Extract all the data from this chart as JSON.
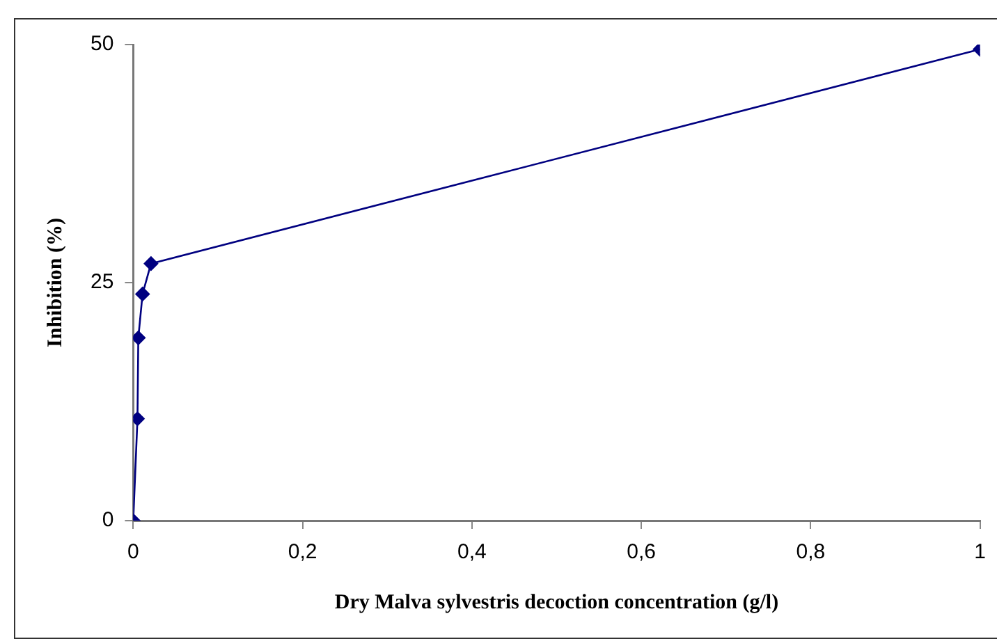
{
  "chart_data": {
    "type": "line",
    "xlabel": "Dry Malva sylvestris decoction concentration (g/l)",
    "ylabel": "Inhibition (%)",
    "series": [
      {
        "color": "#000080",
        "x": [
          0,
          0.005,
          0.006,
          0.011,
          0.021,
          1
        ],
        "values": [
          0,
          10.7,
          19.2,
          23.8,
          27.0,
          49.5
        ]
      }
    ],
    "xlim": [
      0,
      1
    ],
    "xticks": [
      0,
      {
        "value": 0.2,
        "label": "0,2"
      },
      {
        "value": 0.4,
        "label": "0,4"
      },
      {
        "value": 0.6,
        "label": "0,6"
      },
      {
        "value": 0.8,
        "label": "0,8"
      },
      1
    ],
    "ylim": [
      0,
      50
    ],
    "yticks": [
      0,
      25,
      50
    ],
    "grid": false,
    "legend": false,
    "marker": "diamond",
    "line_style": "solid"
  }
}
